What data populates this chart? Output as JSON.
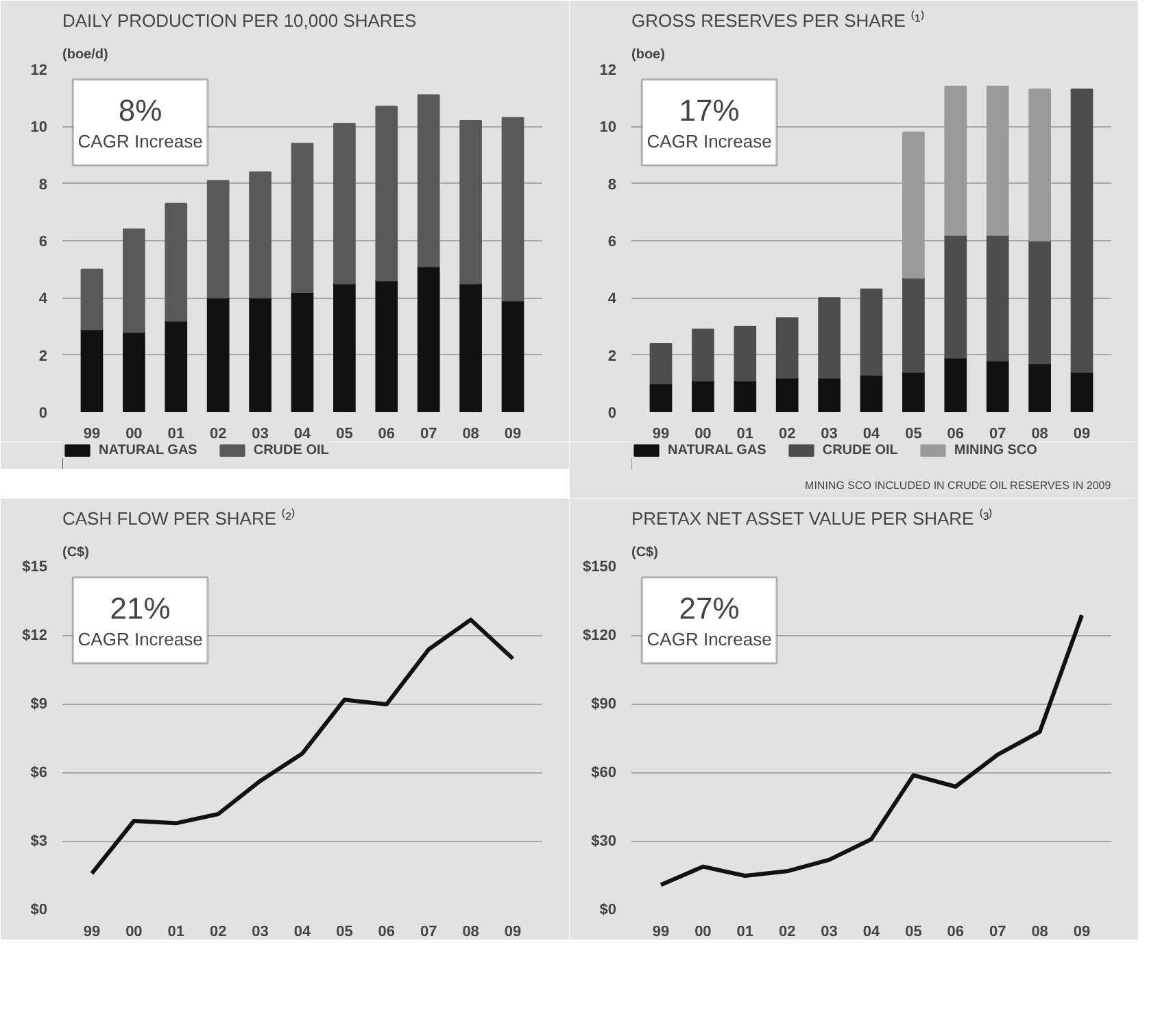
{
  "chart_data": [
    {
      "type": "bar",
      "stacked": true,
      "title": "DAILY PRODUCTION PER 10,000 SHARES",
      "ylabel": "(boe/d)",
      "categories": [
        "99",
        "00",
        "01",
        "02",
        "03",
        "04",
        "05",
        "06",
        "07",
        "08",
        "09"
      ],
      "series": [
        {
          "name": "NATURAL GAS",
          "color": "#111111",
          "values": [
            2.9,
            2.8,
            3.2,
            4.0,
            4.0,
            4.2,
            4.5,
            4.6,
            5.1,
            4.5,
            3.9
          ]
        },
        {
          "name": "CRUDE OIL",
          "color": "#595959",
          "values": [
            2.1,
            3.6,
            4.1,
            4.1,
            4.4,
            5.2,
            5.6,
            6.1,
            6.0,
            5.7,
            6.4
          ]
        }
      ],
      "ylim": [
        0,
        12
      ],
      "yticks": [
        0,
        2,
        4,
        6,
        8,
        10,
        12
      ],
      "grid": "y",
      "legend": "bottom",
      "annotations": [
        "8%",
        "CAGR Increase"
      ]
    },
    {
      "type": "bar",
      "stacked": true,
      "title": "GROSS RESERVES PER SHARE ⁽¹⁾",
      "ylabel": "(boe)",
      "categories": [
        "99",
        "00",
        "01",
        "02",
        "03",
        "04",
        "05",
        "06",
        "07",
        "08",
        "09"
      ],
      "series": [
        {
          "name": "NATURAL GAS",
          "color": "#111111",
          "values": [
            1.0,
            1.1,
            1.1,
            1.2,
            1.2,
            1.3,
            1.4,
            1.9,
            1.8,
            1.7,
            1.4
          ]
        },
        {
          "name": "CRUDE OIL",
          "color": "#4d4d4d",
          "values": [
            1.4,
            1.8,
            1.9,
            2.1,
            2.8,
            3.0,
            3.3,
            4.3,
            4.4,
            4.3,
            9.9
          ]
        },
        {
          "name": "MINING SCO",
          "color": "#9a9a9a",
          "values": [
            null,
            null,
            null,
            null,
            null,
            null,
            5.1,
            5.2,
            5.2,
            5.3,
            null
          ]
        }
      ],
      "ylim": [
        0,
        12
      ],
      "yticks": [
        0,
        2,
        4,
        6,
        8,
        10,
        12
      ],
      "grid": "y",
      "legend": "bottom",
      "annotations": [
        "17%",
        "CAGR Increase",
        "MINING SCO INCLUDED IN CRUDE OIL RESERVES IN 2009"
      ]
    },
    {
      "type": "line",
      "title": "CASH FLOW PER SHARE ⁽²⁾",
      "ylabel": "(C$)",
      "categories": [
        "99",
        "00",
        "01",
        "02",
        "03",
        "04",
        "05",
        "06",
        "07",
        "08",
        "09"
      ],
      "series": [
        {
          "color": "#111111",
          "values": [
            1.6,
            3.9,
            3.8,
            4.2,
            5.65,
            6.85,
            9.2,
            9.0,
            11.4,
            12.7,
            11.0
          ]
        }
      ],
      "ylim": [
        0,
        15
      ],
      "yticks": [
        {
          "value": 0,
          "label": "$0"
        },
        {
          "value": 3,
          "label": "$3"
        },
        {
          "value": 6,
          "label": "$6"
        },
        {
          "value": 9,
          "label": "$9"
        },
        {
          "value": 12,
          "label": "$12"
        },
        {
          "value": 15,
          "label": "$15"
        }
      ],
      "grid": "y",
      "annotations": [
        "21%",
        "CAGR Increase"
      ]
    },
    {
      "type": "line",
      "title": "PRETAX NET ASSET VALUE PER SHARE ⁽³⁾",
      "ylabel": "(C$)",
      "categories": [
        "99",
        "00",
        "01",
        "02",
        "03",
        "04",
        "05",
        "06",
        "07",
        "08",
        "09"
      ],
      "series": [
        {
          "color": "#111111",
          "values": [
            11,
            19,
            15,
            17,
            22,
            31,
            59,
            54,
            68,
            78,
            129
          ]
        }
      ],
      "ylim": [
        0,
        150
      ],
      "yticks": [
        {
          "value": 0,
          "label": "$0"
        },
        {
          "value": 30,
          "label": "$30"
        },
        {
          "value": 60,
          "label": "$60"
        },
        {
          "value": 90,
          "label": "$90"
        },
        {
          "value": 120,
          "label": "$120"
        },
        {
          "value": 150,
          "label": "$150"
        }
      ],
      "grid": "y",
      "annotations": [
        "27%",
        "CAGR Increase"
      ]
    }
  ]
}
